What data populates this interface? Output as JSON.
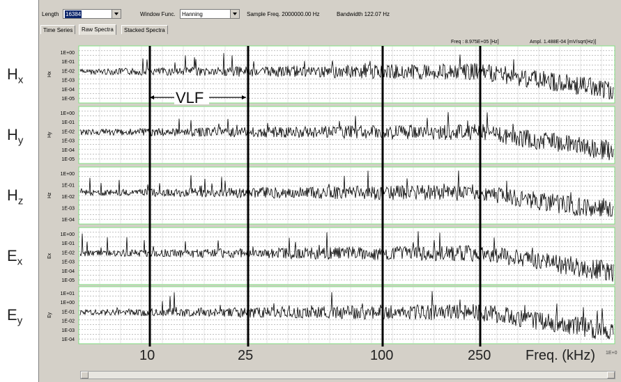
{
  "toolbar": {
    "length_label": "Length",
    "length_value": "16384",
    "window_label": "Window Func.",
    "window_value": "Hanning",
    "sample_freq": "Sample Freq.  2000000.00 Hz",
    "bandwidth": "Bandwidth     122.07 Hz"
  },
  "tabs": [
    "Time Series",
    "Raw Spectra",
    "Stacked Spectra"
  ],
  "readout": {
    "freq": "Freq : 8.975E+05 [Hz]",
    "ampl": "Ampl. 1.488E-04 [mV/sqrt(Hz)]"
  },
  "channels": [
    {
      "big_label": "H",
      "sub": "x",
      "axis_label": "Hx",
      "ticks": [
        "1E+00",
        "1E-01",
        "1E-02",
        "1E-03",
        "1E-04",
        "1E-05"
      ]
    },
    {
      "big_label": "H",
      "sub": "y",
      "axis_label": "Hy",
      "ticks": [
        "1E+00",
        "1E-01",
        "1E-02",
        "1E-03",
        "1E-04",
        "1E-05"
      ]
    },
    {
      "big_label": "H",
      "sub": "z",
      "axis_label": "Hz",
      "ticks": [
        "1E+00",
        "1E-01",
        "1E-02",
        "1E-03",
        "1E-04"
      ]
    },
    {
      "big_label": "E",
      "sub": "x",
      "axis_label": "Ex",
      "ticks": [
        "1E+00",
        "1E-01",
        "1E-02",
        "1E-03",
        "1E-04",
        "1E-05"
      ]
    },
    {
      "big_label": "E",
      "sub": "y",
      "axis_label": "Ey",
      "ticks": [
        "1E+01",
        "1E+00",
        "1E-01",
        "1E-02",
        "1E-03",
        "1E-04"
      ]
    }
  ],
  "annotation": {
    "vlf_label": "VLF",
    "freq_ticks": [
      "10",
      "25",
      "100",
      "250"
    ],
    "freq_axis_label": "Freq. (kHz)",
    "corner_tick": "1E+0"
  },
  "colors": {
    "panel_bg": "#d4d0c8",
    "plot_bg": "#ffffff",
    "grid": "#9a9a9a",
    "trace": "#000000",
    "panel_border": "#7fdf7f"
  }
}
